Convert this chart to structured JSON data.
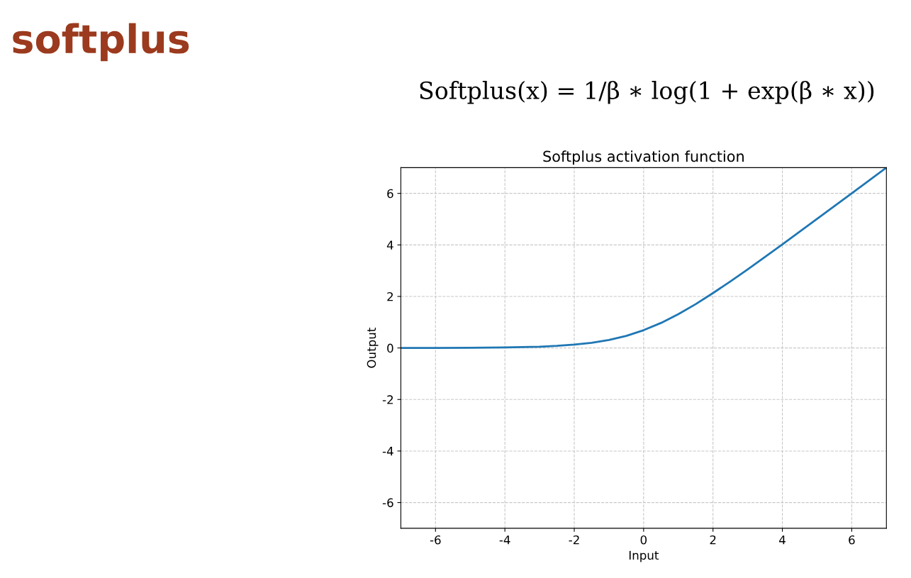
{
  "chart_data": {
    "type": "line",
    "title": "Softplus activation function",
    "xlabel": "Input",
    "ylabel": "Output",
    "annotations": [
      "softplus",
      "Softplus(x) = 1/β ∗ log(1 + exp(β ∗ x))"
    ],
    "x": [
      -7,
      -6,
      -5,
      -4,
      -3,
      -2.5,
      -2,
      -1.5,
      -1,
      -0.5,
      0,
      0.5,
      1,
      1.5,
      2,
      2.5,
      3,
      4,
      5,
      6,
      7
    ],
    "series": [
      {
        "color": "#1f77b4",
        "values": [
          0.0,
          0.0,
          0.01,
          0.02,
          0.05,
          0.08,
          0.13,
          0.2,
          0.31,
          0.47,
          0.69,
          0.97,
          1.31,
          1.7,
          2.13,
          2.58,
          3.05,
          4.02,
          5.01,
          6.0,
          7.0
        ]
      }
    ],
    "xlim": [
      -7,
      7
    ],
    "ylim": [
      -7,
      7
    ],
    "xticks": [
      -6,
      -4,
      -2,
      0,
      2,
      4,
      6
    ],
    "yticks": [
      -6,
      -4,
      -2,
      0,
      2,
      4,
      6
    ],
    "grid": true,
    "legend": false,
    "marker": "none",
    "line_style": "solid"
  }
}
